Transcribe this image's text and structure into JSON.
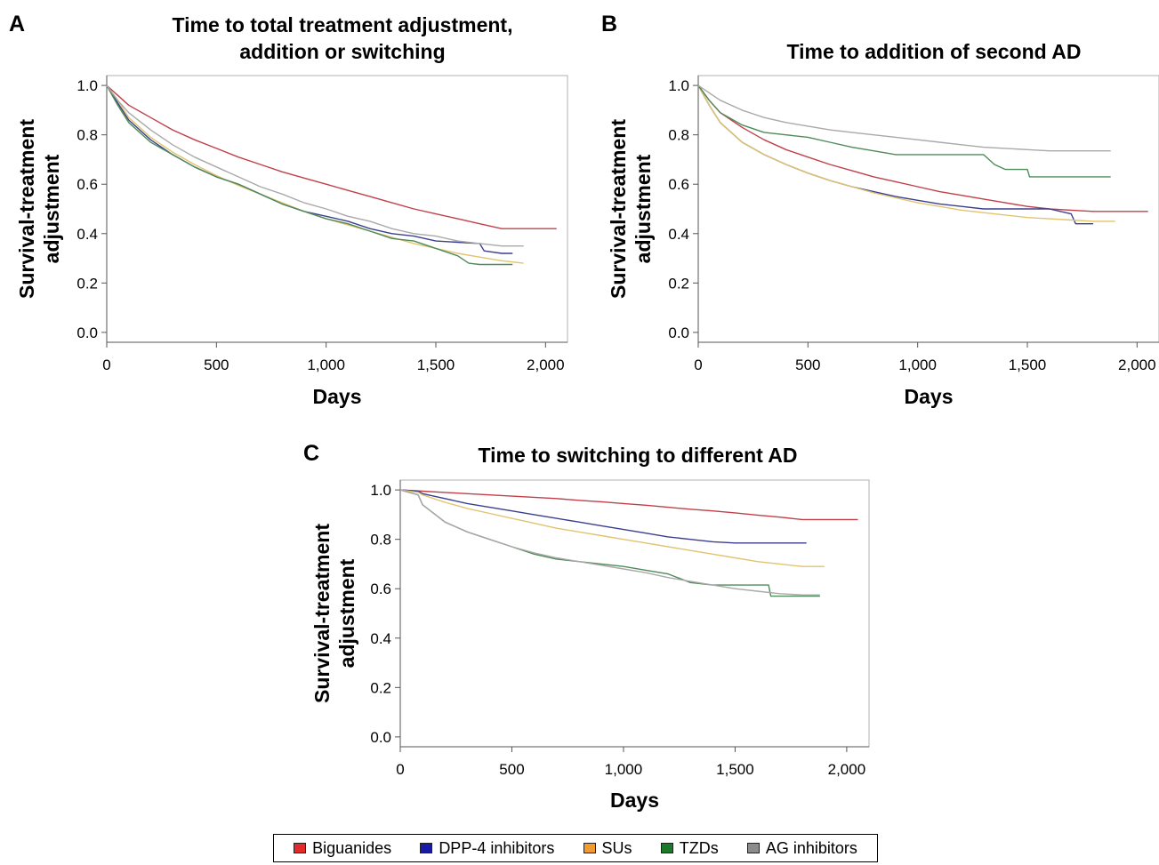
{
  "colors": {
    "Biguanides": "#c0404a",
    "DPP-4 inhibitors": "#3b3f8f",
    "SUs": "#e1c46e",
    "TZDs": "#4f8a5a",
    "AG inhibitors": "#a9a9a9"
  },
  "legend": {
    "items": [
      "Biguanides",
      "DPP-4 inhibitors",
      "SUs",
      "TZDs",
      "AG inhibitors"
    ],
    "swatch_colors": [
      "#e32b2b",
      "#1a1aa8",
      "#f29a2e",
      "#1a7a2a",
      "#8c8c8c"
    ]
  },
  "chart_data": [
    {
      "panel": "A",
      "type": "line",
      "title": "Time to total treatment adjustment, addition or switching",
      "title_lines": [
        "Time to total treatment adjustment,",
        "addition or switching"
      ],
      "xlabel": "Days",
      "ylabel": "Survival-treatment adjustment",
      "ylabel_lines": [
        "Survival-treatment",
        "adjustment"
      ],
      "xlim": [
        0,
        2100
      ],
      "ylim": [
        -0.04,
        1.04
      ],
      "xticks": [
        0,
        500,
        1000,
        1500,
        2000
      ],
      "xtick_labels": [
        "0",
        "500",
        "1,000",
        "1,500",
        "2,000"
      ],
      "yticks": [
        0.0,
        0.2,
        0.4,
        0.6,
        0.8,
        1.0
      ],
      "ytick_labels": [
        "0.0",
        "0.2",
        "0.4",
        "0.6",
        "0.8",
        "1.0"
      ],
      "series": [
        {
          "name": "Biguanides",
          "x": [
            0,
            50,
            100,
            200,
            300,
            400,
            500,
            600,
            700,
            800,
            900,
            1000,
            1100,
            1200,
            1300,
            1400,
            1500,
            1600,
            1700,
            1800,
            1900,
            2050
          ],
          "y": [
            1.0,
            0.96,
            0.92,
            0.87,
            0.82,
            0.78,
            0.745,
            0.71,
            0.68,
            0.65,
            0.625,
            0.6,
            0.575,
            0.55,
            0.525,
            0.5,
            0.48,
            0.46,
            0.44,
            0.42,
            0.42,
            0.42
          ]
        },
        {
          "name": "DPP-4 inhibitors",
          "x": [
            0,
            50,
            100,
            200,
            300,
            400,
            500,
            600,
            700,
            800,
            900,
            1000,
            1100,
            1200,
            1300,
            1400,
            1500,
            1600,
            1700,
            1720,
            1800,
            1850
          ],
          "y": [
            1.0,
            0.93,
            0.86,
            0.78,
            0.72,
            0.67,
            0.63,
            0.6,
            0.56,
            0.52,
            0.49,
            0.47,
            0.45,
            0.42,
            0.4,
            0.39,
            0.37,
            0.365,
            0.36,
            0.33,
            0.32,
            0.32
          ]
        },
        {
          "name": "SUs",
          "x": [
            0,
            50,
            100,
            200,
            300,
            400,
            500,
            600,
            700,
            800,
            900,
            1000,
            1100,
            1200,
            1300,
            1400,
            1500,
            1600,
            1700,
            1800,
            1900
          ],
          "y": [
            1.0,
            0.94,
            0.87,
            0.79,
            0.73,
            0.68,
            0.635,
            0.595,
            0.56,
            0.525,
            0.49,
            0.46,
            0.435,
            0.41,
            0.385,
            0.36,
            0.34,
            0.32,
            0.305,
            0.29,
            0.28
          ]
        },
        {
          "name": "TZDs",
          "x": [
            0,
            50,
            100,
            200,
            300,
            400,
            500,
            600,
            700,
            800,
            900,
            1000,
            1100,
            1200,
            1300,
            1400,
            1500,
            1600,
            1650,
            1700,
            1800,
            1850
          ],
          "y": [
            1.0,
            0.92,
            0.85,
            0.77,
            0.72,
            0.67,
            0.63,
            0.6,
            0.56,
            0.52,
            0.49,
            0.46,
            0.44,
            0.41,
            0.38,
            0.37,
            0.34,
            0.31,
            0.28,
            0.275,
            0.275,
            0.275
          ]
        },
        {
          "name": "AG inhibitors",
          "x": [
            0,
            50,
            100,
            200,
            300,
            400,
            500,
            600,
            700,
            800,
            900,
            1000,
            1100,
            1200,
            1300,
            1400,
            1500,
            1600,
            1700,
            1800,
            1900
          ],
          "y": [
            1.0,
            0.94,
            0.89,
            0.82,
            0.76,
            0.71,
            0.67,
            0.63,
            0.59,
            0.56,
            0.525,
            0.5,
            0.47,
            0.45,
            0.42,
            0.4,
            0.39,
            0.37,
            0.36,
            0.35,
            0.35
          ]
        }
      ]
    },
    {
      "panel": "B",
      "type": "line",
      "title": "Time to addition of second AD",
      "title_lines": [
        "Time to addition of second AD"
      ],
      "xlabel": "Days",
      "ylabel": "Survival-treatment adjustment",
      "ylabel_lines": [
        "Survival-treatment",
        "adjustment"
      ],
      "xlim": [
        0,
        2100
      ],
      "ylim": [
        -0.04,
        1.04
      ],
      "xticks": [
        0,
        500,
        1000,
        1500,
        2000
      ],
      "xtick_labels": [
        "0",
        "500",
        "1,000",
        "1,500",
        "2,000"
      ],
      "yticks": [
        0.0,
        0.2,
        0.4,
        0.6,
        0.8,
        1.0
      ],
      "ytick_labels": [
        "0.0",
        "0.2",
        "0.4",
        "0.6",
        "0.8",
        "1.0"
      ],
      "series": [
        {
          "name": "Biguanides",
          "x": [
            0,
            50,
            100,
            200,
            300,
            400,
            500,
            600,
            700,
            800,
            900,
            1000,
            1100,
            1200,
            1300,
            1400,
            1500,
            1600,
            1700,
            1800,
            1900,
            2050
          ],
          "y": [
            1.0,
            0.94,
            0.89,
            0.83,
            0.78,
            0.74,
            0.71,
            0.68,
            0.655,
            0.63,
            0.61,
            0.59,
            0.57,
            0.555,
            0.54,
            0.525,
            0.51,
            0.5,
            0.495,
            0.49,
            0.49,
            0.49
          ]
        },
        {
          "name": "DPP-4 inhibitors",
          "x": [
            0,
            50,
            100,
            200,
            300,
            400,
            500,
            600,
            700,
            800,
            900,
            1000,
            1100,
            1200,
            1300,
            1400,
            1500,
            1600,
            1700,
            1720,
            1800
          ],
          "y": [
            1.0,
            0.92,
            0.85,
            0.77,
            0.72,
            0.68,
            0.645,
            0.615,
            0.59,
            0.57,
            0.55,
            0.535,
            0.52,
            0.51,
            0.5,
            0.5,
            0.5,
            0.5,
            0.48,
            0.44,
            0.44
          ]
        },
        {
          "name": "SUs",
          "x": [
            0,
            50,
            100,
            200,
            300,
            400,
            500,
            600,
            700,
            800,
            900,
            1000,
            1100,
            1200,
            1300,
            1400,
            1500,
            1600,
            1700,
            1800,
            1900
          ],
          "y": [
            1.0,
            0.92,
            0.85,
            0.77,
            0.72,
            0.68,
            0.645,
            0.615,
            0.59,
            0.565,
            0.545,
            0.525,
            0.51,
            0.495,
            0.485,
            0.475,
            0.465,
            0.46,
            0.455,
            0.45,
            0.45
          ]
        },
        {
          "name": "TZDs",
          "x": [
            0,
            50,
            100,
            200,
            300,
            400,
            500,
            600,
            700,
            800,
            900,
            1000,
            1100,
            1200,
            1300,
            1350,
            1400,
            1500,
            1510,
            1600,
            1700,
            1800,
            1880
          ],
          "y": [
            1.0,
            0.94,
            0.89,
            0.84,
            0.81,
            0.8,
            0.79,
            0.77,
            0.75,
            0.735,
            0.72,
            0.72,
            0.72,
            0.72,
            0.72,
            0.68,
            0.66,
            0.66,
            0.63,
            0.63,
            0.63,
            0.63,
            0.63
          ]
        },
        {
          "name": "AG inhibitors",
          "x": [
            0,
            50,
            100,
            200,
            300,
            400,
            500,
            600,
            700,
            800,
            900,
            1000,
            1100,
            1200,
            1300,
            1400,
            1500,
            1600,
            1700,
            1800,
            1880
          ],
          "y": [
            1.0,
            0.97,
            0.94,
            0.9,
            0.87,
            0.85,
            0.835,
            0.82,
            0.81,
            0.8,
            0.79,
            0.78,
            0.77,
            0.76,
            0.75,
            0.745,
            0.74,
            0.735,
            0.735,
            0.735,
            0.735
          ]
        }
      ]
    },
    {
      "panel": "C",
      "type": "line",
      "title": "Time to switching to different AD",
      "title_lines": [
        "Time to switching to different AD"
      ],
      "xlabel": "Days",
      "ylabel": "Survival-treatment adjustment",
      "ylabel_lines": [
        "Survival-treatment",
        "adjustment"
      ],
      "xlim": [
        0,
        2100
      ],
      "ylim": [
        -0.04,
        1.04
      ],
      "xticks": [
        0,
        500,
        1000,
        1500,
        2000
      ],
      "xtick_labels": [
        "0",
        "500",
        "1,000",
        "1,500",
        "2,000"
      ],
      "yticks": [
        0.0,
        0.2,
        0.4,
        0.6,
        0.8,
        1.0
      ],
      "ytick_labels": [
        "0.0",
        "0.2",
        "0.4",
        "0.6",
        "0.8",
        "1.0"
      ],
      "series": [
        {
          "name": "Biguanides",
          "x": [
            0,
            100,
            200,
            300,
            400,
            500,
            600,
            700,
            800,
            900,
            1000,
            1100,
            1200,
            1300,
            1400,
            1500,
            1600,
            1700,
            1800,
            1900,
            2050
          ],
          "y": [
            1.0,
            0.995,
            0.99,
            0.985,
            0.98,
            0.975,
            0.97,
            0.965,
            0.958,
            0.952,
            0.945,
            0.938,
            0.93,
            0.922,
            0.915,
            0.907,
            0.898,
            0.89,
            0.88,
            0.88,
            0.88
          ]
        },
        {
          "name": "DPP-4 inhibitors",
          "x": [
            0,
            80,
            100,
            200,
            300,
            400,
            500,
            600,
            700,
            800,
            900,
            1000,
            1100,
            1200,
            1300,
            1400,
            1500,
            1600,
            1700,
            1800,
            1820
          ],
          "y": [
            1.0,
            0.995,
            0.985,
            0.965,
            0.945,
            0.93,
            0.915,
            0.9,
            0.885,
            0.87,
            0.855,
            0.84,
            0.825,
            0.81,
            0.8,
            0.79,
            0.785,
            0.785,
            0.785,
            0.785,
            0.785
          ]
        },
        {
          "name": "SUs",
          "x": [
            0,
            80,
            100,
            200,
            300,
            400,
            500,
            600,
            700,
            800,
            900,
            1000,
            1100,
            1200,
            1300,
            1400,
            1500,
            1600,
            1700,
            1800,
            1900
          ],
          "y": [
            1.0,
            0.99,
            0.98,
            0.95,
            0.925,
            0.905,
            0.885,
            0.865,
            0.845,
            0.83,
            0.815,
            0.8,
            0.785,
            0.77,
            0.755,
            0.74,
            0.725,
            0.71,
            0.7,
            0.69,
            0.69
          ]
        },
        {
          "name": "TZDs",
          "x": [
            0,
            80,
            100,
            200,
            300,
            400,
            500,
            600,
            700,
            800,
            900,
            1000,
            1100,
            1200,
            1300,
            1400,
            1500,
            1600,
            1650,
            1660,
            1700,
            1800,
            1880
          ],
          "y": [
            1.0,
            0.98,
            0.94,
            0.87,
            0.83,
            0.8,
            0.77,
            0.74,
            0.72,
            0.71,
            0.7,
            0.69,
            0.675,
            0.66,
            0.625,
            0.615,
            0.615,
            0.615,
            0.615,
            0.57,
            0.57,
            0.57,
            0.57
          ]
        },
        {
          "name": "AG inhibitors",
          "x": [
            0,
            80,
            100,
            200,
            300,
            400,
            500,
            600,
            700,
            800,
            900,
            1000,
            1100,
            1200,
            1300,
            1400,
            1500,
            1600,
            1700,
            1800,
            1880
          ],
          "y": [
            1.0,
            0.98,
            0.94,
            0.87,
            0.83,
            0.8,
            0.77,
            0.745,
            0.725,
            0.71,
            0.695,
            0.68,
            0.665,
            0.645,
            0.63,
            0.615,
            0.6,
            0.59,
            0.58,
            0.575,
            0.575
          ]
        }
      ]
    }
  ]
}
